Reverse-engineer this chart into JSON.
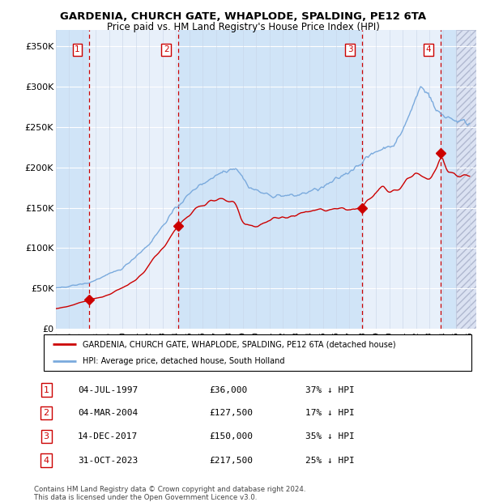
{
  "title": "GARDENIA, CHURCH GATE, WHAPLODE, SPALDING, PE12 6TA",
  "subtitle": "Price paid vs. HM Land Registry's House Price Index (HPI)",
  "xlim_start": 1995.0,
  "xlim_end": 2026.5,
  "ylim": [
    0,
    370000
  ],
  "yticks": [
    0,
    50000,
    100000,
    150000,
    200000,
    250000,
    300000,
    350000
  ],
  "ytick_labels": [
    "£0",
    "£50K",
    "£100K",
    "£150K",
    "£200K",
    "£250K",
    "£300K",
    "£350K"
  ],
  "sale_dates": [
    1997.504,
    2004.17,
    2017.954,
    2023.832
  ],
  "sale_prices": [
    36000,
    127500,
    150000,
    217500
  ],
  "sale_labels": [
    "1",
    "2",
    "3",
    "4"
  ],
  "sale_date_strs": [
    "04-JUL-1997",
    "04-MAR-2004",
    "14-DEC-2017",
    "31-OCT-2023"
  ],
  "sale_price_strs": [
    "£36,000",
    "£127,500",
    "£150,000",
    "£217,500"
  ],
  "sale_hpi_strs": [
    "37% ↓ HPI",
    "17% ↓ HPI",
    "35% ↓ HPI",
    "25% ↓ HPI"
  ],
  "legend_line1": "GARDENIA, CHURCH GATE, WHAPLODE, SPALDING, PE12 6TA (detached house)",
  "legend_line2": "HPI: Average price, detached house, South Holland",
  "footnote": "Contains HM Land Registry data © Crown copyright and database right 2024.\nThis data is licensed under the Open Government Licence v3.0.",
  "hpi_color": "#7aaadd",
  "price_color": "#cc0000",
  "sale_marker_color": "#cc0000",
  "plot_bg": "#e8f0fa",
  "grid_color": "#ffffff",
  "vline_color": "#cc0000",
  "band_color": "#d0e4f7",
  "hatch_bg": "#d8dff0"
}
